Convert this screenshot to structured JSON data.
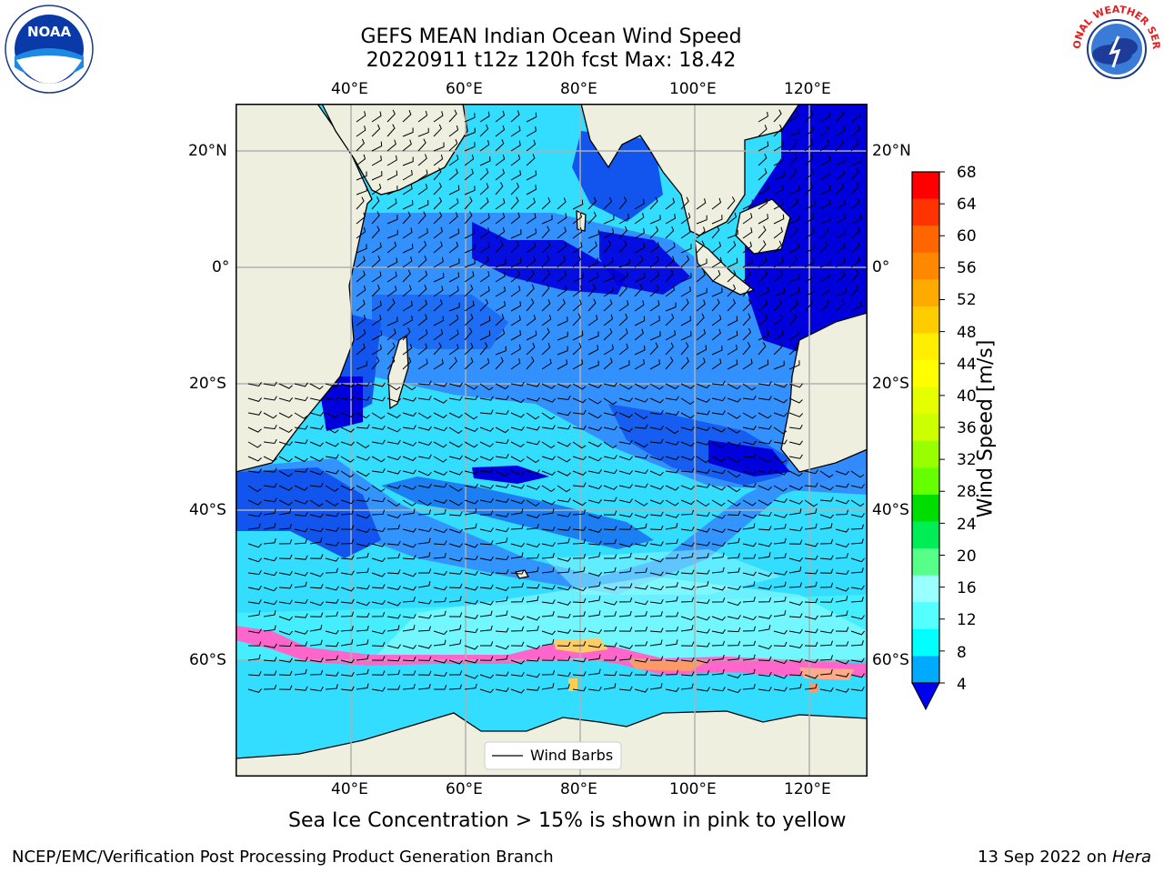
{
  "title": {
    "line1": "GEFS MEAN Indian Ocean Wind Speed",
    "line2": "20220911 t12z 120h fcst   Max: 18.42"
  },
  "logos": {
    "left": {
      "name": "noaa-logo",
      "text": "NOAA",
      "ring": "NATIONAL OCEANIC AND ATMOSPHERIC ADMINISTRATION · U.S. DEPARTMENT OF COMMERCE"
    },
    "right": {
      "name": "nws-logo",
      "ring": "NATIONAL WEATHER SERVICE"
    }
  },
  "map": {
    "extent": {
      "lon": [
        20,
        130
      ],
      "lat": [
        -74,
        28
      ]
    },
    "top_ticks": [
      "40°E",
      "60°E",
      "80°E",
      "100°E",
      "120°E"
    ],
    "bottom_ticks": [
      "40°E",
      "60°E",
      "80°E",
      "100°E",
      "120°E"
    ],
    "lat_ticks": [
      "20°N",
      "0°",
      "20°S",
      "40°S",
      "60°S"
    ],
    "legend_label": "Wind Barbs",
    "colors": {
      "land": "#efefe0",
      "ice": "#ff66cc",
      "grid": "#b0b0b0"
    }
  },
  "colorbar": {
    "label": "Wind Speed [m/s]",
    "ticks": [
      "68",
      "64",
      "60",
      "56",
      "52",
      "48",
      "44",
      "40",
      "36",
      "32",
      "28",
      "24",
      "20",
      "16",
      "12",
      "8",
      "4"
    ],
    "colors": [
      "#ff0000",
      "#ff3300",
      "#ff6600",
      "#ff8800",
      "#ffaa00",
      "#ffcc00",
      "#ffee00",
      "#ffff00",
      "#e5ff00",
      "#ccff00",
      "#99ff00",
      "#66ff00",
      "#00dd00",
      "#00ee55",
      "#55ff88",
      "#99ffff",
      "#55ffff",
      "#00ffff",
      "#00aaff"
    ],
    "under_color": "#0000ee"
  },
  "caption": "Sea Ice Concentration > 15% is shown in pink to yellow",
  "footer": {
    "left": "NCEP/EMC/Verification Post Processing Product Generation Branch",
    "right_date": "13 Sep 2022 on ",
    "right_host": "Hera"
  }
}
